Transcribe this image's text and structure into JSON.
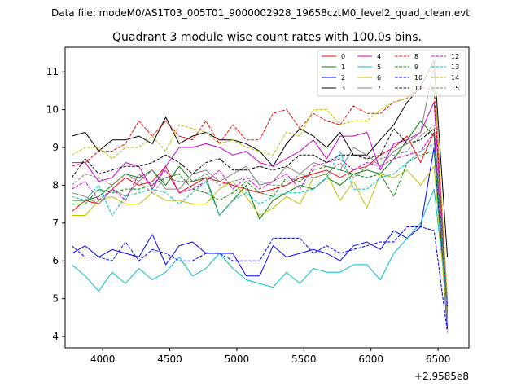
{
  "suptitle": "Data file: modeM0/AS1T03_005T01_9000002928_19658cztM0_level2_quad_clean.evt",
  "chart_data": {
    "type": "line",
    "title": "Quadrant 3 module wise count rates with 100.0s bins.",
    "xlabel": "",
    "ylabel": "",
    "x_offset_label": "+2.9585e8",
    "xlim": [
      3720,
      6730
    ],
    "ylim": [
      3.7,
      11.65
    ],
    "xticks": [
      4000,
      4500,
      5000,
      5500,
      6000,
      6500
    ],
    "yticks": [
      4,
      5,
      6,
      7,
      8,
      9,
      10,
      11
    ],
    "grid": false,
    "legend_position": "top-right",
    "x": [
      3770,
      3870,
      3970,
      4070,
      4170,
      4270,
      4370,
      4470,
      4570,
      4670,
      4770,
      4870,
      4970,
      5070,
      5170,
      5270,
      5370,
      5470,
      5570,
      5670,
      5770,
      5870,
      5970,
      6070,
      6170,
      6270,
      6370,
      6470,
      6570
    ],
    "series": [
      {
        "name": "0",
        "color": "#ff0000",
        "dash": "solid",
        "values": [
          7.3,
          7.6,
          7.5,
          7.9,
          8.2,
          8.0,
          8.1,
          8.5,
          7.8,
          8.0,
          8.2,
          8.1,
          8.0,
          7.9,
          7.8,
          7.9,
          8.0,
          8.2,
          8.3,
          8.4,
          8.2,
          8.4,
          8.5,
          8.8,
          9.0,
          9.3,
          8.6,
          9.4,
          4.8
        ]
      },
      {
        "name": "1",
        "color": "#008000",
        "dash": "solid",
        "values": [
          7.6,
          7.6,
          7.7,
          8.0,
          8.3,
          8.2,
          8.4,
          8.0,
          8.5,
          8.1,
          8.2,
          7.2,
          7.6,
          8.0,
          7.1,
          7.6,
          7.8,
          8.0,
          7.9,
          8.2,
          8.0,
          8.3,
          8.4,
          8.3,
          8.7,
          9.2,
          9.7,
          9.3,
          4.4
        ]
      },
      {
        "name": "2",
        "color": "#0000ff",
        "dash": "solid",
        "values": [
          6.2,
          6.4,
          6.1,
          6.3,
          6.2,
          6.1,
          6.7,
          5.9,
          6.4,
          6.5,
          6.2,
          6.2,
          6.2,
          5.6,
          5.6,
          6.4,
          6.1,
          6.2,
          6.3,
          6.2,
          6.0,
          6.4,
          6.5,
          6.3,
          6.8,
          6.6,
          6.9,
          9.0,
          4.2
        ]
      },
      {
        "name": "3",
        "color": "#000000",
        "dash": "solid",
        "values": [
          9.3,
          9.4,
          8.9,
          9.2,
          9.2,
          9.3,
          9.1,
          9.8,
          9.1,
          9.3,
          9.4,
          9.2,
          9.2,
          9.1,
          8.9,
          8.5,
          9.1,
          9.5,
          9.3,
          9.0,
          9.4,
          8.8,
          8.8,
          9.2,
          9.6,
          10.2,
          10.6,
          11.3,
          6.1
        ]
      },
      {
        "name": "4",
        "color": "#cc00cc",
        "dash": "solid",
        "values": [
          8.6,
          8.6,
          8.1,
          8.2,
          8.6,
          8.5,
          7.9,
          8.5,
          9.0,
          9.0,
          9.1,
          9.0,
          8.8,
          8.9,
          8.6,
          8.5,
          8.7,
          8.9,
          9.2,
          8.7,
          9.3,
          9.3,
          9.4,
          8.4,
          9.1,
          9.2,
          9.4,
          10.2,
          4.8
        ]
      },
      {
        "name": "5",
        "color": "#00bfbf",
        "dash": "solid",
        "values": [
          5.9,
          5.6,
          5.2,
          5.7,
          5.4,
          5.8,
          5.5,
          5.7,
          6.1,
          5.6,
          5.8,
          6.2,
          5.8,
          5.5,
          5.4,
          5.3,
          5.7,
          5.4,
          5.8,
          5.7,
          5.7,
          5.9,
          5.9,
          5.5,
          6.2,
          6.6,
          7.0,
          7.9,
          4.8
        ]
      },
      {
        "name": "6",
        "color": "#bfbf00",
        "dash": "solid",
        "values": [
          7.2,
          7.2,
          7.6,
          7.7,
          7.5,
          7.5,
          7.8,
          7.6,
          7.6,
          7.5,
          7.5,
          7.9,
          8.1,
          7.7,
          7.2,
          7.4,
          7.7,
          7.5,
          8.2,
          8.3,
          7.6,
          8.1,
          7.4,
          8.3,
          8.2,
          8.4,
          8.0,
          8.5,
          4.4
        ]
      },
      {
        "name": "7",
        "color": "#808080",
        "dash": "solid",
        "values": [
          7.8,
          7.7,
          7.5,
          7.9,
          7.7,
          8.1,
          8.4,
          7.9,
          7.9,
          8.3,
          8.4,
          8.1,
          8.3,
          8.5,
          8.0,
          8.1,
          8.5,
          8.3,
          8.6,
          8.5,
          8.4,
          9.0,
          8.8,
          8.5,
          8.9,
          9.1,
          9.4,
          11.2,
          4.5
        ]
      },
      {
        "name": "8",
        "color": "#ff0000",
        "dash": "dashed",
        "values": [
          8.5,
          8.6,
          8.9,
          8.9,
          9.1,
          9.7,
          9.3,
          9.7,
          9.3,
          9.2,
          9.7,
          9.1,
          9.6,
          9.2,
          9.2,
          9.9,
          10.0,
          9.5,
          9.9,
          9.7,
          9.6,
          10.1,
          9.9,
          9.9,
          10.2,
          10.3,
          10.6,
          10.5,
          5.0
        ]
      },
      {
        "name": "9",
        "color": "#008000",
        "dash": "dashed",
        "values": [
          7.5,
          7.5,
          7.9,
          7.8,
          7.9,
          7.9,
          8.0,
          8.2,
          8.3,
          7.9,
          7.8,
          7.6,
          7.8,
          8.1,
          7.8,
          7.7,
          8.2,
          8.1,
          8.4,
          8.5,
          8.4,
          8.3,
          8.2,
          8.3,
          7.7,
          8.6,
          8.8,
          8.9,
          4.7
        ]
      },
      {
        "name": "10",
        "color": "#0000ff",
        "dash": "dashed",
        "values": [
          6.4,
          6.1,
          6.1,
          6.0,
          6.5,
          6.0,
          6.3,
          6.2,
          6.0,
          6.0,
          6.2,
          6.2,
          6.0,
          6.0,
          6.0,
          6.6,
          6.6,
          6.6,
          6.2,
          6.4,
          6.2,
          6.3,
          6.4,
          6.5,
          6.5,
          6.9,
          6.9,
          6.8,
          4.1
        ]
      },
      {
        "name": "11",
        "color": "#000000",
        "dash": "dashed",
        "values": [
          8.2,
          8.7,
          8.3,
          8.4,
          8.5,
          8.5,
          8.6,
          8.8,
          8.6,
          8.3,
          8.6,
          8.7,
          8.4,
          8.4,
          8.5,
          8.4,
          8.5,
          8.8,
          8.8,
          8.6,
          8.8,
          8.8,
          8.7,
          8.8,
          9.5,
          9.1,
          9.2,
          9.5,
          4.8
        ]
      },
      {
        "name": "12",
        "color": "#cc00cc",
        "dash": "dashed",
        "values": [
          7.9,
          8.1,
          7.6,
          7.9,
          7.6,
          8.3,
          8.0,
          8.4,
          7.8,
          7.9,
          8.1,
          8.4,
          7.9,
          8.2,
          7.9,
          8.1,
          8.3,
          7.9,
          8.5,
          8.6,
          8.7,
          8.4,
          8.6,
          8.5,
          8.7,
          8.8,
          8.9,
          9.4,
          4.6
        ]
      },
      {
        "name": "13",
        "color": "#00bfbf",
        "dash": "dashed",
        "values": [
          7.7,
          7.6,
          8.0,
          7.2,
          7.7,
          7.8,
          7.9,
          7.8,
          7.5,
          7.8,
          8.1,
          7.2,
          7.6,
          7.8,
          7.5,
          7.7,
          7.8,
          7.8,
          7.9,
          8.2,
          8.9,
          7.9,
          7.9,
          8.2,
          8.3,
          8.6,
          8.9,
          9.1,
          4.7
        ]
      },
      {
        "name": "14",
        "color": "#bfbf00",
        "dash": "dashed",
        "values": [
          8.8,
          9.0,
          9.0,
          8.7,
          9.0,
          9.0,
          9.3,
          8.9,
          9.6,
          9.5,
          9.4,
          9.1,
          9.2,
          9.0,
          8.9,
          8.8,
          9.4,
          9.3,
          10.0,
          10.0,
          9.6,
          9.7,
          9.7,
          10.0,
          10.2,
          10.3,
          11.1,
          11.0,
          5.0
        ]
      },
      {
        "name": "15",
        "color": "#808080",
        "dash": "dashed",
        "values": [
          8.0,
          8.3,
          8.2,
          8.0,
          8.3,
          8.1,
          7.8,
          8.2,
          8.1,
          8.1,
          8.3,
          8.0,
          8.1,
          8.2,
          8.1,
          8.0,
          8.0,
          8.3,
          8.2,
          8.3,
          8.6,
          8.2,
          8.5,
          8.7,
          8.8,
          8.9,
          9.3,
          9.6,
          4.9
        ]
      }
    ]
  }
}
